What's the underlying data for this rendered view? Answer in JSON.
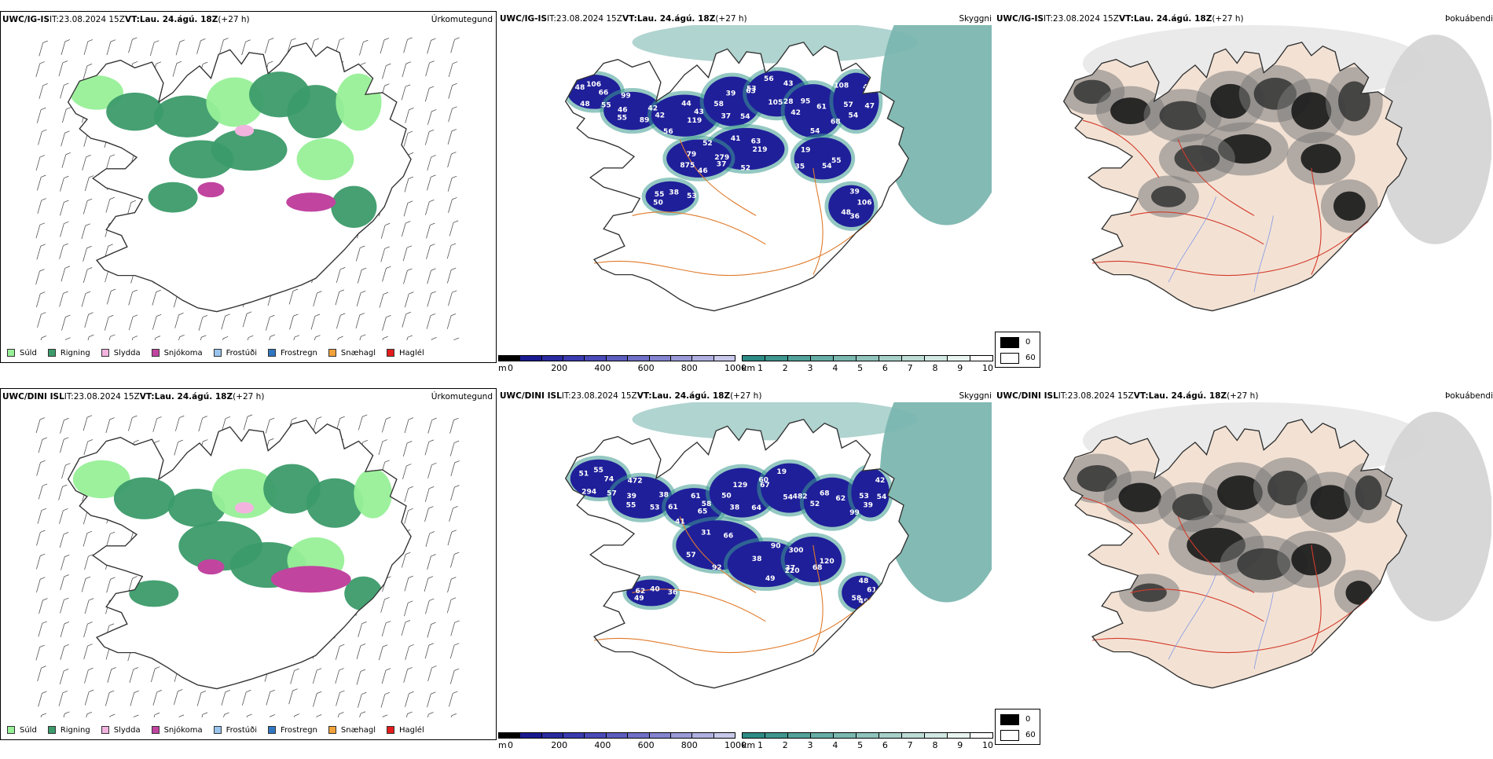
{
  "rows": [
    {
      "model": "UWC/IG-IS",
      "it_label": "IT:",
      "it": "23.08.2024 15Z",
      "vt_label": "VT:",
      "vt": "Lau. 24.ágú. 18Z",
      "lead": "(+27 h)",
      "names": [
        "Úrkomutegund",
        "Skyggni",
        "Þokuábendi"
      ],
      "visibility_labels": [
        "66",
        "55",
        "44",
        "54",
        "63",
        "61",
        "54",
        "41",
        "37",
        "35",
        "38",
        "36",
        "48",
        "42",
        "56",
        "39",
        "28",
        "42",
        "40",
        "52",
        "79",
        "55",
        "50",
        "39",
        "55",
        "46",
        "43",
        "37",
        "56",
        "68",
        "57",
        "63",
        "46",
        "19",
        "53",
        "48",
        "106",
        "89",
        "42",
        "53",
        "105",
        "95",
        "47",
        "279",
        "52",
        "54",
        "55",
        "106",
        "48",
        "99",
        "119",
        "58",
        "43",
        "54",
        "108",
        "219",
        "875"
      ]
    },
    {
      "model": "UWC/DINI ISL",
      "it_label": "IT:",
      "it": "23.08.2024 15Z",
      "vt_label": "VT:",
      "vt": "Lau. 24.ágú. 18Z",
      "lead": "(+27 h)",
      "names": [
        "Úrkomutegund",
        "Skyggni",
        "Þokuábendi"
      ],
      "visibility_labels": [
        "74",
        "55",
        "61",
        "64",
        "67",
        "62",
        "39",
        "31",
        "220",
        "37",
        "40",
        "49",
        "51",
        "38",
        "41",
        "129",
        "482",
        "52",
        "42",
        "92",
        "38",
        "120",
        "49",
        "48",
        "57",
        "39",
        "58",
        "38",
        "19",
        "99",
        "53",
        "66",
        "49",
        "300",
        "36",
        "58",
        "55",
        "53",
        "61",
        "60",
        "54",
        "68",
        "54",
        "57",
        "90",
        "68",
        "62",
        "61",
        "294",
        "472",
        "65",
        "50"
      ]
    }
  ],
  "precip_legend": [
    {
      "label": "Súld",
      "color": "#98f098"
    },
    {
      "label": "Rigning",
      "color": "#3c9b6a"
    },
    {
      "label": "Slydda",
      "color": "#f2b3df"
    },
    {
      "label": "Snjókoma",
      "color": "#c1449f"
    },
    {
      "label": "Frostúði",
      "color": "#98c4ee"
    },
    {
      "label": "Frostregn",
      "color": "#2f77c0"
    },
    {
      "label": "Snæhagl",
      "color": "#f2a23a"
    },
    {
      "label": "Haglél",
      "color": "#e21b1b"
    }
  ],
  "cloudbase_bar": {
    "unit": "m",
    "labels": [
      "0",
      "200",
      "400",
      "600",
      "800",
      "1000"
    ],
    "colors": [
      "#000000",
      "#1a1a90",
      "#2b2ba0",
      "#3b3bb0",
      "#4a4ab8",
      "#5d5dbf",
      "#7070c8",
      "#8484d0",
      "#9a9ad8",
      "#b0b0e0",
      "#c8c8ea"
    ]
  },
  "visibility_bar": {
    "unit": "km",
    "labels": [
      "1",
      "2",
      "3",
      "4",
      "5",
      "6",
      "7",
      "8",
      "9",
      "10"
    ],
    "colors": [
      "#2e8b85",
      "#3f968f",
      "#52a29a",
      "#66ada5",
      "#7bb8b0",
      "#90c4bc",
      "#a6d0c8",
      "#bcdcd4",
      "#d2e8e2",
      "#e8f4f0",
      "#ffffff"
    ]
  },
  "fog_legend": {
    "labels": [
      "0",
      "60"
    ],
    "colors": [
      "#000000",
      "#ffffff"
    ]
  },
  "colors": {
    "roads": "#e07a2a",
    "roads_red": "#d33a2a",
    "land": "#f3e2d4",
    "coast": "#333333"
  }
}
